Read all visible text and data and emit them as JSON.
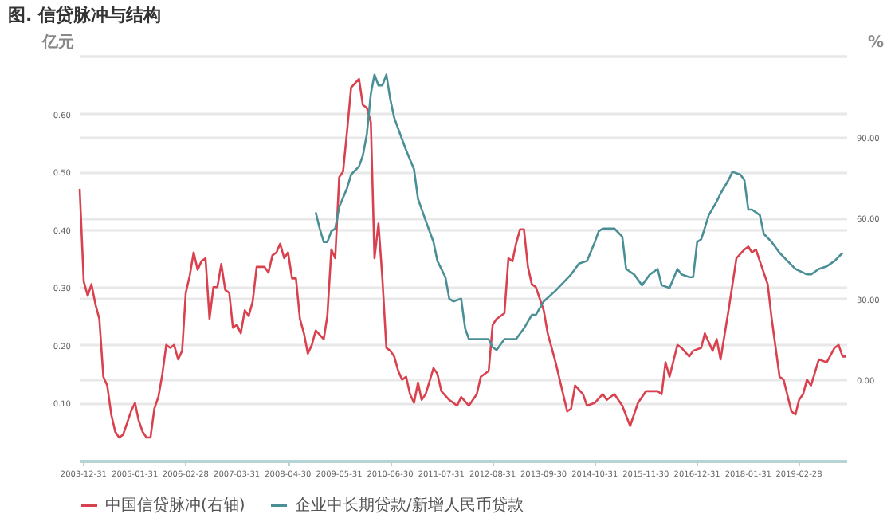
{
  "chart_data": {
    "type": "line",
    "title": "图. 信贷脉冲与结构",
    "ylabel": "亿元",
    "y2label": "%",
    "xlim": [
      "2003-12",
      "2020-03"
    ],
    "xticks": [
      "2003-12-31",
      "2005-01-31",
      "2006-02-28",
      "2007-03-31",
      "2008-04-30",
      "2009-05-31",
      "2010-06-30",
      "2011-07-31",
      "2012-08-31",
      "2013-09-30",
      "2014-10-31",
      "2015-11-30",
      "2016-12-31",
      "2018-01-31",
      "2019-02-28"
    ],
    "ylim": [
      0,
      0.7
    ],
    "yticks": [
      {
        "value": 0.1,
        "label": "0.10"
      },
      {
        "value": 0.2,
        "label": "0.20"
      },
      {
        "value": 0.3,
        "label": "0.30"
      },
      {
        "value": 0.4,
        "label": "0.40"
      },
      {
        "value": 0.5,
        "label": "0.50"
      },
      {
        "value": 0.6,
        "label": "0.60"
      },
      {
        "value": 0.7,
        "label": null
      }
    ],
    "y2lim": [
      -30,
      120
    ],
    "y2ticks": [
      {
        "value": 0,
        "label": "0.00"
      },
      {
        "value": 30,
        "label": "30.00"
      },
      {
        "value": 60,
        "label": "60.00"
      },
      {
        "value": 90,
        "label": "90.00"
      },
      {
        "value": 120,
        "label": null
      }
    ],
    "grid": "y",
    "legend": "bottom",
    "line_style": "solid",
    "series": [
      {
        "name": "中国信贷脉冲(右轴)",
        "color": "#d9414e",
        "axis": "y",
        "x": [
          "2003-12",
          "2004-01",
          "2004-02",
          "2004-03",
          "2004-04",
          "2004-05",
          "2004-06",
          "2004-07",
          "2004-08",
          "2004-09",
          "2004-10",
          "2004-11",
          "2005-01",
          "2005-02",
          "2005-03",
          "2005-04",
          "2005-05",
          "2005-06",
          "2005-07",
          "2005-08",
          "2005-09",
          "2005-10",
          "2005-11",
          "2005-12",
          "2006-01",
          "2006-02",
          "2006-03",
          "2006-04",
          "2006-05",
          "2006-06",
          "2006-07",
          "2006-08",
          "2006-09",
          "2006-10",
          "2006-11",
          "2006-12",
          "2007-01",
          "2007-02",
          "2007-03",
          "2007-04",
          "2007-05",
          "2007-06",
          "2007-07",
          "2007-08",
          "2007-09",
          "2007-11",
          "2007-12",
          "2008-01",
          "2008-02",
          "2008-03",
          "2008-04",
          "2008-05",
          "2008-06",
          "2008-07",
          "2008-08",
          "2008-09",
          "2008-10",
          "2008-11",
          "2008-12",
          "2009-02",
          "2009-03",
          "2009-04",
          "2009-05",
          "2009-06",
          "2009-07",
          "2009-08",
          "2009-09",
          "2009-11",
          "2009-12",
          "2010-01",
          "2010-02",
          "2010-03",
          "2010-04",
          "2010-05",
          "2010-06",
          "2010-07",
          "2010-08",
          "2010-09",
          "2010-10",
          "2010-11",
          "2010-12",
          "2011-01",
          "2011-02",
          "2011-03",
          "2011-04",
          "2011-06",
          "2011-07",
          "2011-08",
          "2011-10",
          "2011-12",
          "2012-01",
          "2012-03",
          "2012-05",
          "2012-06",
          "2012-08",
          "2012-09",
          "2012-10",
          "2012-12",
          "2013-01",
          "2013-02",
          "2013-03",
          "2013-04",
          "2013-05",
          "2013-06",
          "2013-07",
          "2013-08",
          "2013-10",
          "2013-11",
          "2014-01",
          "2014-04",
          "2014-05",
          "2014-06",
          "2014-08",
          "2014-09",
          "2014-11",
          "2015-01",
          "2015-02",
          "2015-04",
          "2015-06",
          "2015-08",
          "2015-10",
          "2015-12",
          "2016-03",
          "2016-04",
          "2016-05",
          "2016-06",
          "2016-08",
          "2016-09",
          "2016-11",
          "2016-12",
          "2017-02",
          "2017-03",
          "2017-05",
          "2017-06",
          "2017-07",
          "2017-09",
          "2017-11",
          "2018-01",
          "2018-02",
          "2018-03",
          "2018-04",
          "2018-05",
          "2018-07",
          "2018-08",
          "2018-10",
          "2018-11",
          "2019-01",
          "2019-02",
          "2019-03",
          "2019-04",
          "2019-05",
          "2019-06",
          "2019-08",
          "2019-10",
          "2019-12",
          "2020-01",
          "2020-02",
          "2020-03"
        ],
        "values": [
          0.47,
          0.31,
          0.285,
          0.305,
          0.27,
          0.245,
          0.145,
          0.13,
          0.08,
          0.05,
          0.04,
          0.045,
          0.085,
          0.1,
          0.07,
          0.05,
          0.04,
          0.04,
          0.09,
          0.11,
          0.15,
          0.2,
          0.195,
          0.2,
          0.175,
          0.19,
          0.29,
          0.32,
          0.36,
          0.33,
          0.345,
          0.35,
          0.245,
          0.3,
          0.3,
          0.34,
          0.295,
          0.29,
          0.23,
          0.235,
          0.22,
          0.26,
          0.25,
          0.275,
          0.335,
          0.335,
          0.325,
          0.355,
          0.36,
          0.375,
          0.35,
          0.36,
          0.315,
          0.315,
          0.245,
          0.22,
          0.185,
          0.2,
          0.225,
          0.21,
          0.25,
          0.365,
          0.35,
          0.49,
          0.5,
          0.57,
          0.645,
          0.66,
          0.615,
          0.61,
          0.585,
          0.35,
          0.41,
          0.315,
          0.195,
          0.19,
          0.18,
          0.155,
          0.14,
          0.145,
          0.115,
          0.1,
          0.135,
          0.105,
          0.115,
          0.16,
          0.15,
          0.12,
          0.105,
          0.095,
          0.11,
          0.095,
          0.115,
          0.145,
          0.155,
          0.235,
          0.245,
          0.255,
          0.35,
          0.345,
          0.375,
          0.4,
          0.4,
          0.335,
          0.305,
          0.3,
          0.26,
          0.22,
          0.17,
          0.085,
          0.09,
          0.13,
          0.115,
          0.095,
          0.1,
          0.115,
          0.105,
          0.115,
          0.095,
          0.06,
          0.1,
          0.12,
          0.12,
          0.115,
          0.17,
          0.145,
          0.2,
          0.195,
          0.18,
          0.19,
          0.195,
          0.22,
          0.19,
          0.21,
          0.175,
          0.26,
          0.35,
          0.365,
          0.37,
          0.36,
          0.365,
          0.345,
          0.305,
          0.245,
          0.145,
          0.14,
          0.085,
          0.08,
          0.105,
          0.115,
          0.14,
          0.13,
          0.175,
          0.17,
          0.195,
          0.2,
          0.18,
          0.18
        ]
      },
      {
        "name": "企业中长期贷款/新增人民币贷款",
        "color": "#4a8f96",
        "axis": "y2",
        "x": [
          "2008-12",
          "2009-01",
          "2009-02",
          "2009-03",
          "2009-04",
          "2009-05",
          "2009-06",
          "2009-08",
          "2009-09",
          "2009-11",
          "2009-12",
          "2010-01",
          "2010-02",
          "2010-03",
          "2010-04",
          "2010-05",
          "2010-06",
          "2010-07",
          "2010-08",
          "2010-10",
          "2010-11",
          "2011-01",
          "2011-02",
          "2011-04",
          "2011-06",
          "2011-07",
          "2011-09",
          "2011-10",
          "2011-11",
          "2012-01",
          "2012-02",
          "2012-03",
          "2012-04",
          "2012-06",
          "2012-08",
          "2012-09",
          "2012-10",
          "2012-12",
          "2013-03",
          "2013-05",
          "2013-07",
          "2013-08",
          "2013-10",
          "2014-01",
          "2014-05",
          "2014-07",
          "2014-09",
          "2014-11",
          "2014-12",
          "2015-01",
          "2015-04",
          "2015-06",
          "2015-07",
          "2015-09",
          "2015-11",
          "2016-01",
          "2016-03",
          "2016-04",
          "2016-06",
          "2016-08",
          "2016-09",
          "2016-11",
          "2016-12",
          "2017-01",
          "2017-02",
          "2017-04",
          "2017-06",
          "2017-07",
          "2017-09",
          "2017-10",
          "2017-12",
          "2018-01",
          "2018-02",
          "2018-03",
          "2018-05",
          "2018-06",
          "2018-08",
          "2018-10",
          "2018-12",
          "2019-02",
          "2019-05",
          "2019-06",
          "2019-08",
          "2019-10",
          "2019-12",
          "2020-02"
        ],
        "values": [
          62,
          56,
          51,
          51,
          55,
          56,
          64,
          71,
          76,
          79,
          83,
          91,
          106,
          113,
          109,
          109,
          113,
          104,
          97,
          89,
          85,
          78,
          67,
          59,
          51,
          44,
          38,
          30,
          29,
          30,
          19,
          15,
          15,
          15,
          15,
          12,
          11,
          15,
          15,
          19,
          24,
          24,
          29,
          33,
          39,
          43,
          44,
          51,
          55,
          56,
          56,
          53,
          41,
          39,
          35,
          39,
          41,
          35,
          34,
          41,
          39,
          38,
          38,
          51,
          52,
          61,
          66,
          69,
          74,
          77,
          76,
          74,
          63,
          63,
          61,
          54,
          51,
          47,
          44,
          41,
          39,
          39,
          41,
          42,
          44,
          47
        ]
      }
    ]
  }
}
